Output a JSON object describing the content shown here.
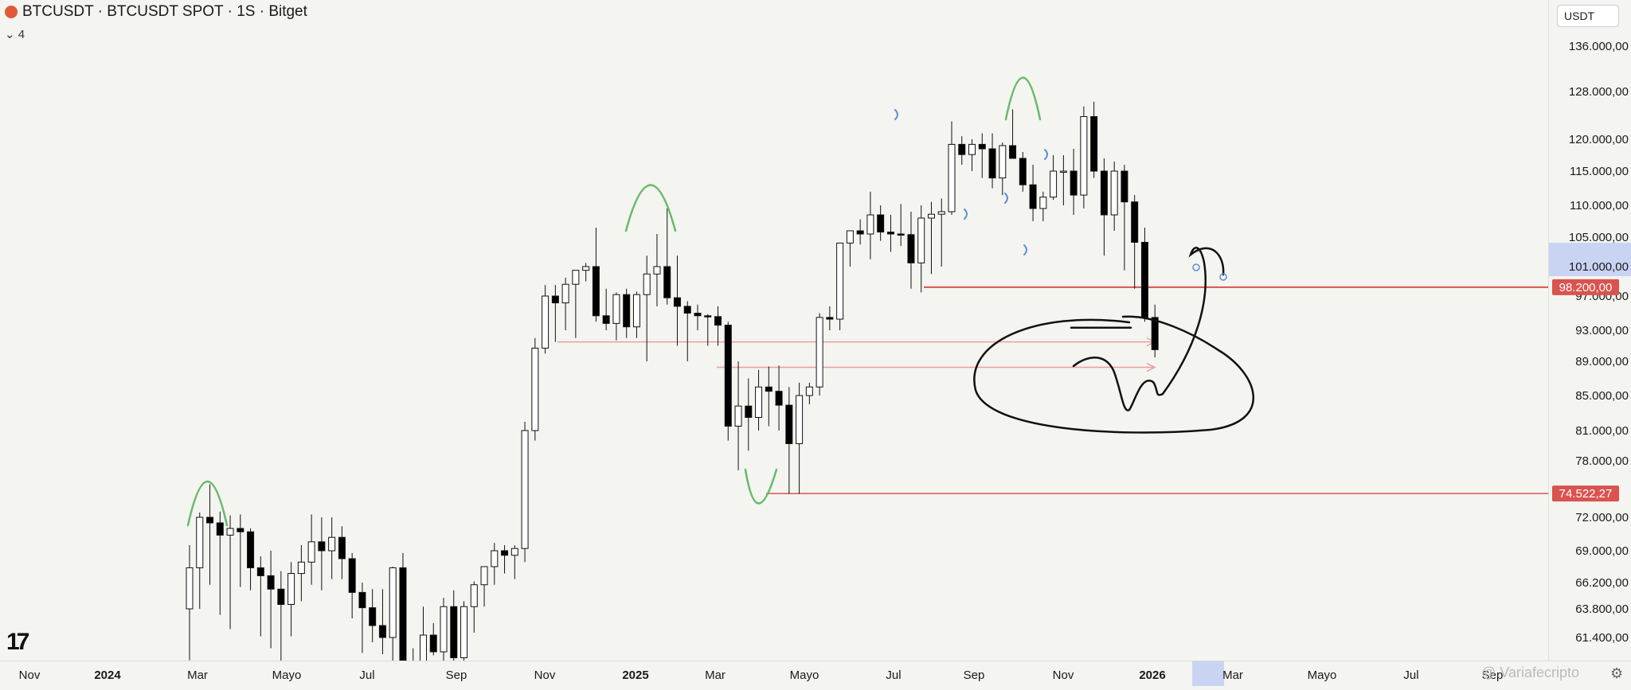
{
  "header": {
    "title": "BTCUSDT · BTCUSDT SPOT · 1S · Bitget",
    "indicator_badge": "4"
  },
  "price_scale": {
    "currency": "USDT"
  },
  "watermark": "@ Variafecripto",
  "colors": {
    "background": "#f4f4f0",
    "up": "#ffffff",
    "down": "#000000",
    "level_line": "#d9534f",
    "marker_green": "#66bb6a",
    "marker_blue": "#5b8fd6"
  },
  "chart_data": {
    "type": "candlestick",
    "y_ticks": [
      {
        "v": 136000,
        "label": "136.000,00"
      },
      {
        "v": 128000,
        "label": "128.000,00"
      },
      {
        "v": 120000,
        "label": "120.000,00"
      },
      {
        "v": 115000,
        "label": "115.000,00"
      },
      {
        "v": 110000,
        "label": "110.000,00"
      },
      {
        "v": 105000,
        "label": "105.000,00"
      },
      {
        "v": 101000,
        "label": "101.000,00"
      },
      {
        "v": 97000,
        "label": "97.000,00"
      },
      {
        "v": 93000,
        "label": "93.000,00"
      },
      {
        "v": 89000,
        "label": "89.000,00"
      },
      {
        "v": 85000,
        "label": "85.000,00"
      },
      {
        "v": 81000,
        "label": "81.000,00"
      },
      {
        "v": 78000,
        "label": "78.000,00"
      },
      {
        "v": 72000,
        "label": "72.000,00"
      },
      {
        "v": 69000,
        "label": "69.000,00"
      },
      {
        "v": 66200,
        "label": "66.200,00"
      },
      {
        "v": 63800,
        "label": "63.800,00"
      },
      {
        "v": 61400,
        "label": "61.400,00"
      }
    ],
    "x_ticks": [
      {
        "label": "Nov",
        "x": 37
      },
      {
        "label": "2024",
        "x": 135
      },
      {
        "label": "Mar",
        "x": 248
      },
      {
        "label": "Mayo",
        "x": 360
      },
      {
        "label": "Jul",
        "x": 461
      },
      {
        "label": "Sep",
        "x": 573
      },
      {
        "label": "Nov",
        "x": 684
      },
      {
        "label": "2025",
        "x": 798
      },
      {
        "label": "Mar",
        "x": 898
      },
      {
        "label": "Mayo",
        "x": 1010
      },
      {
        "label": "Jul",
        "x": 1122
      },
      {
        "label": "Sep",
        "x": 1223
      },
      {
        "label": "Nov",
        "x": 1335
      },
      {
        "label": "2026",
        "x": 1447
      },
      {
        "label": "Mar",
        "x": 1548
      },
      {
        "label": "Mayo",
        "x": 1660
      },
      {
        "label": "Jul",
        "x": 1772
      },
      {
        "label": "Sep",
        "x": 1874
      }
    ],
    "price_labels": [
      {
        "value": 98200,
        "label": "98.200,00"
      },
      {
        "value": 74522.27,
        "label": "74.522,27"
      }
    ],
    "candles": [
      [
        63800,
        69500,
        59500,
        67500
      ],
      [
        67500,
        72500,
        63800,
        72000
      ],
      [
        72000,
        75500,
        66000,
        71500
      ],
      [
        71500,
        72600,
        63300,
        70400
      ],
      [
        70400,
        72200,
        62100,
        71000
      ],
      [
        71000,
        72300,
        65800,
        70700
      ],
      [
        70700,
        71000,
        65500,
        67500
      ],
      [
        67500,
        68500,
        61500,
        66800
      ],
      [
        66800,
        69000,
        60500,
        65600
      ],
      [
        65600,
        67200,
        59200,
        64200
      ],
      [
        64200,
        68000,
        61500,
        67000
      ],
      [
        67000,
        69500,
        64500,
        68000
      ],
      [
        68000,
        72300,
        66000,
        69800
      ],
      [
        69800,
        72000,
        65500,
        69000
      ],
      [
        69000,
        72000,
        66500,
        70200
      ],
      [
        70200,
        71200,
        66500,
        68300
      ],
      [
        68300,
        68800,
        63000,
        65300
      ],
      [
        65300,
        66200,
        60100,
        63900
      ],
      [
        63900,
        65600,
        61000,
        62400
      ],
      [
        62400,
        65600,
        60000,
        61400
      ],
      [
        61400,
        67600,
        57500,
        67500
      ],
      [
        67500,
        68800,
        56000,
        58500
      ],
      [
        58500,
        60500,
        54000,
        57800
      ],
      [
        57800,
        64000,
        57000,
        61600
      ],
      [
        61600,
        62600,
        59900,
        60200
      ],
      [
        60200,
        64800,
        58800,
        64000
      ],
      [
        64000,
        65500,
        58800,
        59700
      ],
      [
        59700,
        64500,
        58800,
        64000
      ],
      [
        64000,
        66300,
        61800,
        66000
      ],
      [
        66000,
        67200,
        64000,
        67600
      ],
      [
        67600,
        69700,
        66000,
        69000
      ],
      [
        69000,
        69500,
        67000,
        68600
      ],
      [
        68600,
        69500,
        66500,
        69200
      ],
      [
        69200,
        82000,
        68000,
        81000
      ],
      [
        81000,
        92000,
        80000,
        90700
      ],
      [
        90700,
        98500,
        90000,
        97000
      ],
      [
        97000,
        98500,
        91500,
        96200
      ],
      [
        96200,
        99500,
        93000,
        98600
      ],
      [
        98600,
        100000,
        92000,
        100500
      ],
      [
        100500,
        101500,
        99000,
        101000
      ],
      [
        101000,
        106500,
        94000,
        94700
      ],
      [
        94700,
        98000,
        93000,
        93800
      ],
      [
        93800,
        97500,
        91700,
        97200
      ],
      [
        97200,
        98000,
        92000,
        93400
      ],
      [
        93400,
        97600,
        92000,
        97200
      ],
      [
        97200,
        102500,
        89000,
        100000
      ],
      [
        100000,
        105500,
        95800,
        101000
      ],
      [
        101000,
        109500,
        96000,
        96800
      ],
      [
        96800,
        102500,
        91000,
        95800
      ],
      [
        95800,
        96400,
        89000,
        95000
      ],
      [
        95000,
        96000,
        93000,
        94700
      ],
      [
        94700,
        94900,
        91000,
        94600
      ],
      [
        94600,
        95800,
        91000,
        93600
      ],
      [
        93600,
        94000,
        80000,
        81500
      ],
      [
        81500,
        89000,
        77000,
        83800
      ],
      [
        83800,
        87000,
        79000,
        82500
      ],
      [
        82500,
        88000,
        81000,
        86000
      ],
      [
        86000,
        88400,
        81500,
        85500
      ],
      [
        85500,
        88500,
        81000,
        83900
      ],
      [
        83900,
        86000,
        74500,
        79700
      ],
      [
        79700,
        86500,
        74500,
        85000
      ],
      [
        85000,
        86500,
        84000,
        86000
      ],
      [
        86000,
        95000,
        85000,
        94500
      ],
      [
        94500,
        95800,
        93000,
        94300
      ],
      [
        94300,
        104000,
        93000,
        104200
      ],
      [
        104200,
        106000,
        101000,
        106000
      ],
      [
        106000,
        107800,
        104000,
        105500
      ],
      [
        105500,
        112000,
        102000,
        108500
      ],
      [
        108500,
        110000,
        104500,
        105800
      ],
      [
        105800,
        108500,
        103000,
        105500
      ],
      [
        105500,
        110200,
        103800,
        105400
      ],
      [
        105400,
        109000,
        98000,
        101500
      ],
      [
        101500,
        110000,
        97500,
        108000
      ],
      [
        108000,
        110500,
        100000,
        108600
      ],
      [
        108600,
        111000,
        101000,
        109000
      ],
      [
        109000,
        123000,
        108500,
        119200
      ],
      [
        119200,
        120500,
        116000,
        117600
      ],
      [
        117600,
        120000,
        115000,
        119200
      ],
      [
        119200,
        121000,
        114000,
        118500
      ],
      [
        118500,
        121000,
        112500,
        114000
      ],
      [
        114000,
        119500,
        111500,
        119000
      ],
      [
        119000,
        125000,
        117000,
        117000
      ],
      [
        117000,
        118000,
        112000,
        113000
      ],
      [
        113000,
        116000,
        107500,
        109500
      ],
      [
        109500,
        112000,
        107500,
        111200
      ],
      [
        111200,
        117500,
        110800,
        115000
      ],
      [
        115000,
        117500,
        110000,
        115000
      ],
      [
        115000,
        118500,
        108500,
        111500
      ],
      [
        111500,
        125500,
        109500,
        123800
      ],
      [
        123800,
        126300,
        114000,
        115000
      ],
      [
        115000,
        117000,
        102500,
        108500
      ],
      [
        108500,
        116500,
        106000,
        115000
      ],
      [
        115000,
        116000,
        100500,
        110500
      ],
      [
        110500,
        111500,
        98000,
        104300
      ],
      [
        104300,
        106500,
        94000,
        94500
      ],
      [
        94500,
        96000,
        89500,
        90500
      ]
    ]
  }
}
